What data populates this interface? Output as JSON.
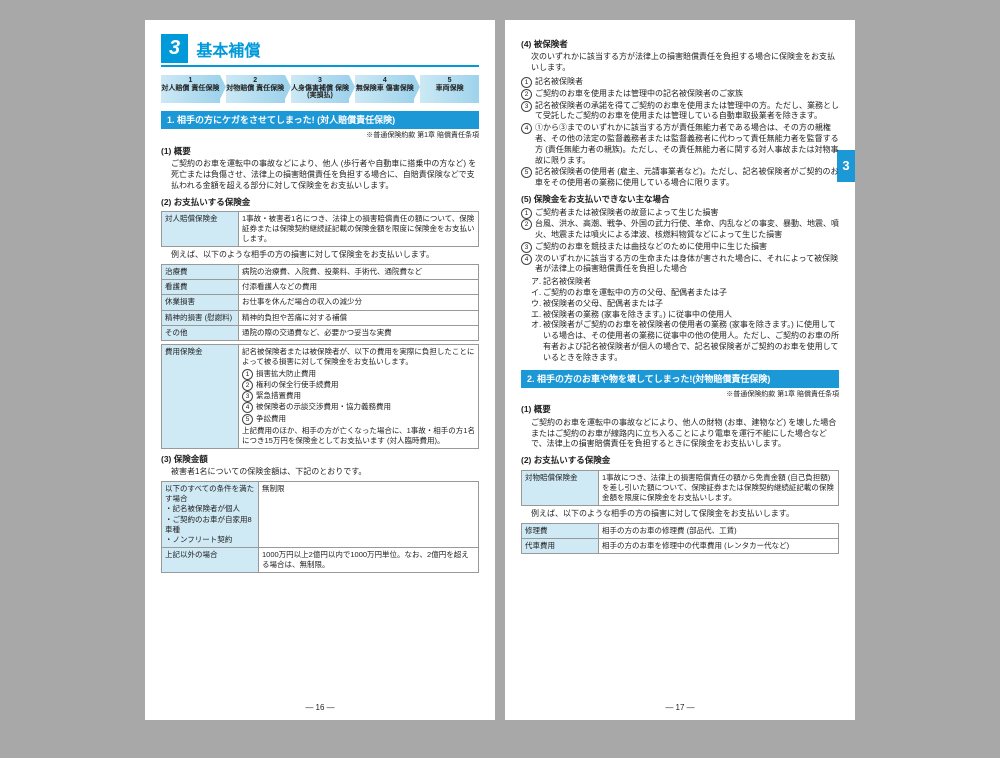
{
  "section": {
    "num": "3",
    "title": "基本補償"
  },
  "flow": [
    {
      "n": "1",
      "t": "対人賠償\n責任保険"
    },
    {
      "n": "2",
      "t": "対物賠償\n責任保険"
    },
    {
      "n": "3",
      "t": "人身傷害補償\n保険(実損払)"
    },
    {
      "n": "4",
      "t": "無保険車\n傷害保険"
    },
    {
      "n": "5",
      "t": "車両保険"
    }
  ],
  "bar1": "1.  相手の方にケガをさせてしまった! (対人賠償責任保険)",
  "ref1": "※普通保険約款  第1章  賠償責任条項",
  "s1_1_h": "(1) 概要",
  "s1_1_b": "ご契約のお車を運転中の事故などにより、他人 (歩行者や自動車に搭乗中の方など) を死亡または負傷させ、法律上の損害賠償責任を負担する場合に、自賠責保険などで支払われる金額を超える部分に対して保険金をお支払いします。",
  "s1_2_h": "(2) お支払いする保険金",
  "t1a": {
    "l": "対人賠償保険金",
    "v": "1事故・被害者1名につき、法律上の損害賠償責任の額について、保険証券または保険契約継続証記載の保険金額を限度に保険金をお支払いします。"
  },
  "s1_2_note": "例えば、以下のような相手の方の損害に対して保険金をお支払いします。",
  "t1b": [
    {
      "l": "治療費",
      "v": "病院の治療費、入院費、投薬料、手術代、通院費など"
    },
    {
      "l": "看護費",
      "v": "付添看護人などの費用"
    },
    {
      "l": "休業損害",
      "v": "お仕事を休んだ場合の収入の減少分"
    },
    {
      "l": "精神的損害\n(慰謝料)",
      "v": "精神的負担や苦痛に対する補償"
    },
    {
      "l": "その他",
      "v": "通院の際の交通費など、必要かつ妥当な実費"
    }
  ],
  "t1c": {
    "l": "費用保険金",
    "head": "記名被保険者または被保険者が、以下の費用を実際に負担したことによって被る損害に対して保険金をお支払いします。",
    "items": [
      "損害拡大防止費用",
      "権利の保全行使手続費用",
      "緊急措置費用",
      "被保険者の示談交渉費用・協力義務費用",
      "争訟費用"
    ],
    "tail": "上記費用のほか、相手の方が亡くなった場合に、1事故・相手の方1名につき15万円を保険金としてお支払います (対人臨時費用)。"
  },
  "s1_3_h": "(3) 保険金額",
  "s1_3_b": "被害者1名についての保険金額は、下記のとおりです。",
  "t1d": [
    {
      "l": "以下のすべての条件を満たす場合\n・記名被保険者が個人\n・ご契約のお車が自家用8車種\n・ノンフリート契約",
      "v": "無制限"
    },
    {
      "l": "上記以外の場合",
      "v": "1000万円以上2億円以内で1000万円単位。なお、2億円を超える場合は、無制限。"
    }
  ],
  "pg_l": "— 16 —",
  "s1_4_h": "(4) 被保険者",
  "s1_4_head": "次のいずれかに該当する方が法律上の損害賠償責任を負担する場合に保険金をお支払いします。",
  "s1_4_items": [
    "記名被保険者",
    "ご契約のお車を使用または管理中の記名被保険者のご家族",
    "記名被保険者の承諾を得てご契約のお車を使用または管理中の方。ただし、業務として受託したご契約のお車を使用または管理している自動車取扱業者を除きます。",
    "①から③までのいずれかに該当する方が責任無能力者である場合は、その方の親権者、その他の法定の監督義務者または監督義務者に代わって責任無能力者を監督する方 (責任無能力者の親族)。ただし、その責任無能力者に関する対人事故または対物事故に限ります。",
    "記名被保険者の使用者 (雇主、元請事業者など)。ただし、記名被保険者がご契約のお車をその使用者の業務に使用している場合に限ります。"
  ],
  "s1_5_h": "(5) 保険金をお支払いできない主な場合",
  "s1_5_items": [
    "ご契約者または被保険者の故意によって生じた損害",
    "台風、洪水、高潮、戦争、外国の武力行使、革命、内乱などの事変、暴動、地震、噴火、地震または噴火による津波、核燃料物質などによって生じた損害",
    "ご契約のお車を競技または曲技などのために使用中に生じた損害",
    "次のいずれかに該当する方の生命または身体が害された場合に、それによって被保険者が法律上の損害賠償責任を負担した場合"
  ],
  "s1_5_kata": [
    "記名被保険者",
    "ご契約のお車を運転中の方の父母、配偶者または子",
    "被保険者の父母、配偶者または子",
    "被保険者の業務 (家事を除きます。) に従事中の使用人",
    "被保険者がご契約のお車を被保険者の使用者の業務 (家事を除きます。) に使用している場合は、その使用者の業務に従事中の他の使用人。ただし、ご契約のお車の所有者および記名被保険者が個人の場合で、記名被保険者がご契約のお車を使用しているときを除きます。"
  ],
  "bar2": "2.  相手の方のお車や物を壊してしまった!(対物賠償責任保険)",
  "ref2": "※普通保険約款  第1章  賠償責任条項",
  "s2_1_h": "(1) 概要",
  "s2_1_b": "ご契約のお車を運転中の事故などにより、他人の財物 (お車、建物など) を壊した場合またはご契約のお車が線路内に立ち入ることにより電車を運行不能にした場合などで、法律上の損害賠償責任を負担するときに保険金をお支払いします。",
  "s2_2_h": "(2) お支払いする保険金",
  "t2a": {
    "l": "対物賠償保険金",
    "v": "1事故につき、法律上の損害賠償責任の額から免責金額 (自己負担額) を差し引いた額について、保険証券または保険契約継続証記載の保険金額を限度に保険金をお支払いします。"
  },
  "s2_2_note": "例えば、以下のような相手の方の損害に対して保険金をお支払いします。",
  "t2b": [
    {
      "l": "修理費",
      "v": "相手の方のお車の修理費 (部品代、工賃)"
    },
    {
      "l": "代車費用",
      "v": "相手の方のお車を修理中の代車費用 (レンタカー代など)"
    }
  ],
  "pg_r": "— 17 —",
  "tab": "3",
  "colors": {
    "accent": "#1b98d5",
    "cell": "#cfe9f5"
  }
}
